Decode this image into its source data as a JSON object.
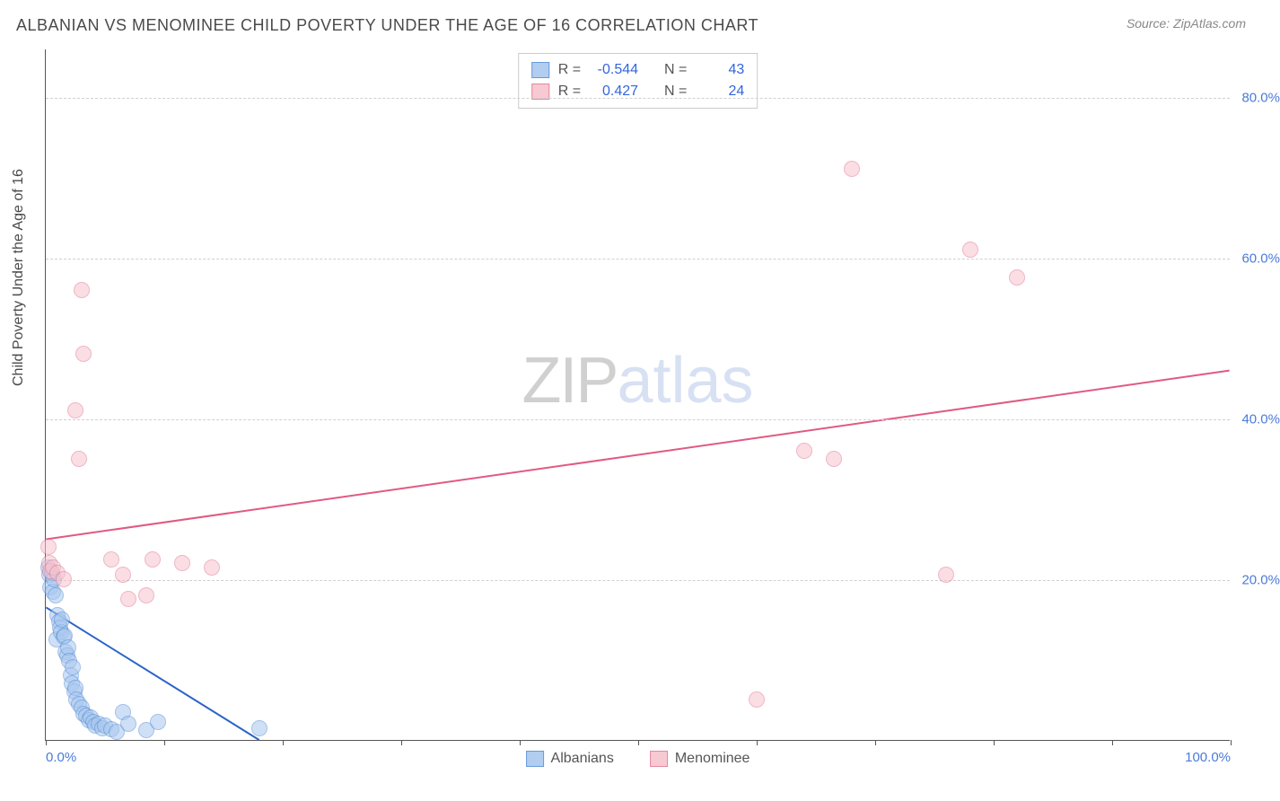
{
  "header": {
    "title": "ALBANIAN VS MENOMINEE CHILD POVERTY UNDER THE AGE OF 16 CORRELATION CHART",
    "source_prefix": "Source: ",
    "source_name": "ZipAtlas.com"
  },
  "y_axis": {
    "label": "Child Poverty Under the Age of 16"
  },
  "watermark": {
    "part1": "ZIP",
    "part2": "atlas"
  },
  "chart": {
    "type": "scatter",
    "background_color": "#ffffff",
    "grid_color": "#d0d0d0",
    "axis_color": "#555555",
    "xlim": [
      0,
      100
    ],
    "ylim": [
      0,
      86
    ],
    "x_ticks": [
      0,
      10,
      20,
      30,
      40,
      50,
      60,
      70,
      80,
      90,
      100
    ],
    "x_tick_labels": {
      "0": "0.0%",
      "100": "100.0%"
    },
    "y_ticks": [
      20,
      40,
      60,
      80
    ],
    "y_tick_labels": {
      "20": "20.0%",
      "40": "40.0%",
      "60": "60.0%",
      "80": "80.0%"
    },
    "point_radius": 9,
    "point_stroke_width": 1.2,
    "trend_line_width": 2,
    "series": [
      {
        "key": "albanians",
        "label": "Albanians",
        "fill": "#a9c8ef",
        "stroke": "#5a8fd6",
        "fill_opacity": 0.55,
        "R": "-0.544",
        "N": "43",
        "trend": {
          "x1": 0,
          "y1": 16.5,
          "x2": 18,
          "y2": 0,
          "color": "#2a63c8"
        },
        "points": [
          [
            0.2,
            21.5
          ],
          [
            0.3,
            20.5
          ],
          [
            0.4,
            19.0
          ],
          [
            0.5,
            20.8
          ],
          [
            0.6,
            18.4
          ],
          [
            0.7,
            20.0
          ],
          [
            0.8,
            18.0
          ],
          [
            0.9,
            12.5
          ],
          [
            1.0,
            15.5
          ],
          [
            1.1,
            14.8
          ],
          [
            1.2,
            14.0
          ],
          [
            1.3,
            13.4
          ],
          [
            1.4,
            15.0
          ],
          [
            1.5,
            12.8
          ],
          [
            1.6,
            13.0
          ],
          [
            1.7,
            11.0
          ],
          [
            1.8,
            10.5
          ],
          [
            1.9,
            11.5
          ],
          [
            2.0,
            9.8
          ],
          [
            2.1,
            8.0
          ],
          [
            2.2,
            7.0
          ],
          [
            2.3,
            9.0
          ],
          [
            2.4,
            6.0
          ],
          [
            2.5,
            6.5
          ],
          [
            2.6,
            5.0
          ],
          [
            2.8,
            4.5
          ],
          [
            3.0,
            4.0
          ],
          [
            3.2,
            3.2
          ],
          [
            3.4,
            3.0
          ],
          [
            3.6,
            2.5
          ],
          [
            3.8,
            2.8
          ],
          [
            4.0,
            2.2
          ],
          [
            4.2,
            1.8
          ],
          [
            4.5,
            2.0
          ],
          [
            4.8,
            1.5
          ],
          [
            5.0,
            1.8
          ],
          [
            5.5,
            1.3
          ],
          [
            6.0,
            1.0
          ],
          [
            6.5,
            3.5
          ],
          [
            7.0,
            2.0
          ],
          [
            8.5,
            1.2
          ],
          [
            9.5,
            2.2
          ],
          [
            18.0,
            1.5
          ]
        ]
      },
      {
        "key": "menominee",
        "label": "Menominee",
        "fill": "#f6c4cf",
        "stroke": "#e37b96",
        "fill_opacity": 0.55,
        "R": "0.427",
        "N": "24",
        "trend": {
          "x1": 0,
          "y1": 25,
          "x2": 100,
          "y2": 46,
          "color": "#e05a82"
        },
        "points": [
          [
            0.2,
            24.0
          ],
          [
            0.3,
            22.0
          ],
          [
            0.4,
            21.0
          ],
          [
            0.6,
            21.5
          ],
          [
            1.0,
            20.8
          ],
          [
            1.5,
            20.0
          ],
          [
            2.5,
            41.0
          ],
          [
            2.8,
            35.0
          ],
          [
            3.0,
            56.0
          ],
          [
            3.2,
            48.0
          ],
          [
            5.5,
            22.5
          ],
          [
            6.5,
            20.5
          ],
          [
            7.0,
            17.5
          ],
          [
            8.5,
            18.0
          ],
          [
            9.0,
            22.5
          ],
          [
            11.5,
            22.0
          ],
          [
            14.0,
            21.5
          ],
          [
            60.0,
            5.0
          ],
          [
            64.0,
            36.0
          ],
          [
            66.5,
            35.0
          ],
          [
            68.0,
            71.0
          ],
          [
            76.0,
            20.5
          ],
          [
            78.0,
            61.0
          ],
          [
            82.0,
            57.5
          ]
        ]
      }
    ]
  },
  "stats_box": {
    "r_label": "R =",
    "n_label": "N ="
  }
}
